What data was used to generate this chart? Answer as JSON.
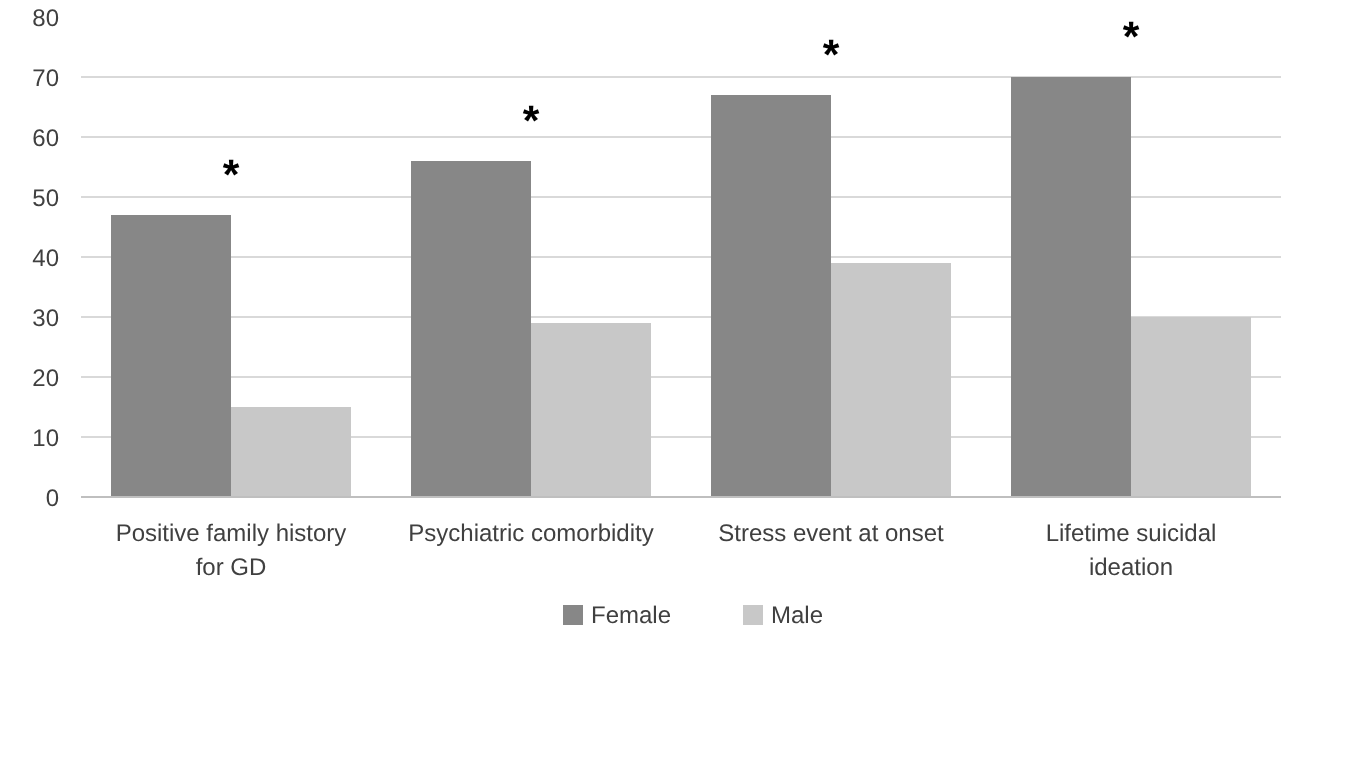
{
  "chart_data": {
    "type": "bar",
    "categories": [
      "Positive family history for GD",
      "Psychiatric comorbidity",
      "Stress event at onset",
      "Lifetime suicidal ideation"
    ],
    "series": [
      {
        "name": "Female",
        "color": "#878787",
        "values": [
          47,
          56,
          67,
          70
        ]
      },
      {
        "name": "Male",
        "color": "#c8c8c8",
        "values": [
          15,
          29,
          39,
          30
        ]
      }
    ],
    "ylim": [
      0,
      80
    ],
    "yticks": [
      0,
      10,
      20,
      30,
      40,
      50,
      60,
      70,
      80
    ],
    "grid": "y",
    "legend": "bottom",
    "annotations": [
      "*",
      "*",
      "*",
      "*"
    ]
  }
}
